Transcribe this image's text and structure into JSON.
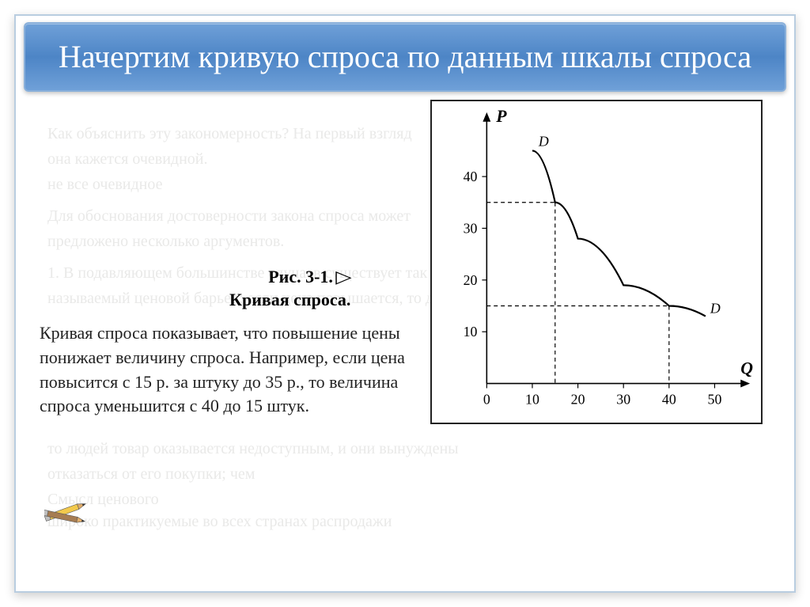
{
  "title": "Начертим кривую спроса по данным шкалы спроса",
  "figure": {
    "label_line1": "Рис. 3-1.",
    "triangle": "▷",
    "label_line2": "Кривая спроса.",
    "caption": "Кривая спроса показывает, что повышение цены понижает величину спроса. Например, если цена повысится с 15 р. за штуку до 35 р., то величина спроса уменьшится с 40 до 15 штук."
  },
  "chart": {
    "type": "line",
    "y_axis_label": "P",
    "x_axis_label": "Q",
    "series_label_start": "D",
    "series_label_end": "D",
    "x_ticks": [
      0,
      10,
      20,
      30,
      40,
      50
    ],
    "y_ticks": [
      10,
      20,
      30,
      40
    ],
    "xlim": [
      0,
      55
    ],
    "ylim": [
      0,
      50
    ],
    "curve_points": [
      {
        "x": 10,
        "y": 45
      },
      {
        "x": 15,
        "y": 35
      },
      {
        "x": 20,
        "y": 28
      },
      {
        "x": 30,
        "y": 19
      },
      {
        "x": 40,
        "y": 15
      },
      {
        "x": 48,
        "y": 13
      }
    ],
    "guide_lines": [
      {
        "x": 15,
        "y": 35
      },
      {
        "x": 40,
        "y": 15
      }
    ],
    "axis_color": "#000000",
    "curve_color": "#000000",
    "curve_width": 2.2,
    "guide_dash": "5,4",
    "tick_fontsize": 18,
    "label_fontsize": 22,
    "background_color": "#ffffff",
    "border_color": "#222222"
  },
  "ghost": {
    "g1": "Как объяснить эту закономерность? На первый взгляд",
    "g2": "она кажется очевидной.",
    "g3": "не все очевидное",
    "g4": "Для обоснования достоверности закона спроса может",
    "g5": "предложено несколько аргументов.",
    "g6": "1. В подавляющем большинстве случаев существует так",
    "g7": "называемый ценовой барьер: если цена повышается, то для какой",
    "g8": "то людей товар оказывается недоступным, и они вынуждены",
    "g9": "отказаться от его покупки; чем",
    "g10": "Смысл ценового",
    "g11": "широко практикуемые во всех странах распродажи"
  },
  "colors": {
    "title_bg_top": "#6fa0d8",
    "title_bg_mid": "#4d85c6",
    "title_text": "#ffffff",
    "slide_border": "#b9cde0",
    "ghost_text": "#e9e9e8"
  }
}
